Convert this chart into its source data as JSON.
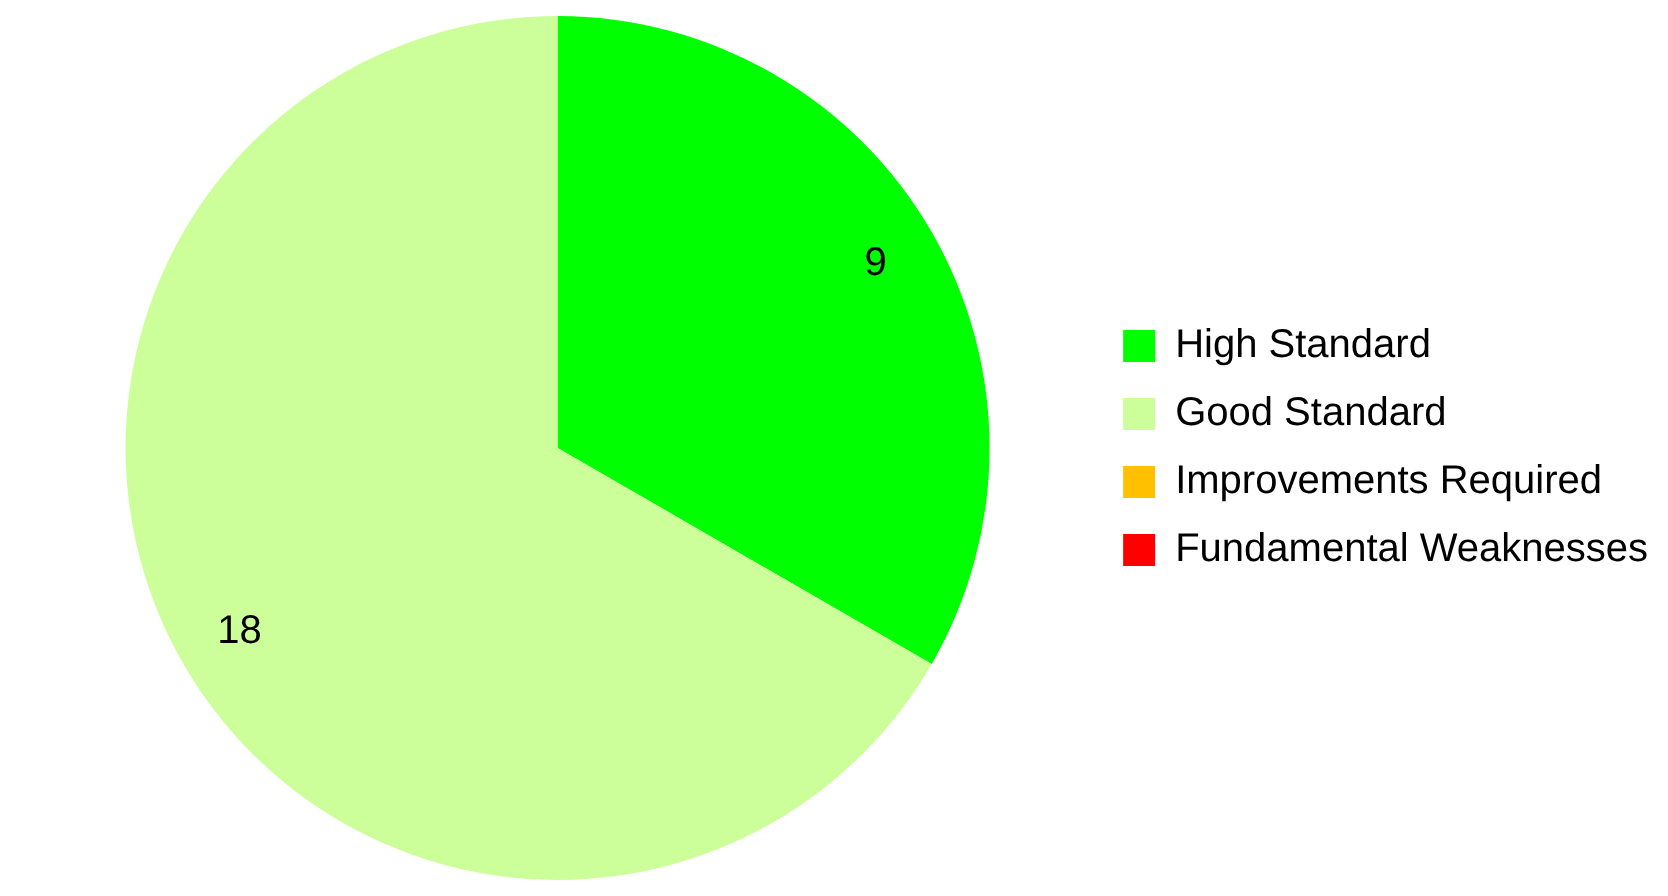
{
  "chart_data": {
    "type": "pie",
    "categories": [
      "High Standard",
      "Good Standard",
      "Improvements Required",
      "Fundamental Weaknesses"
    ],
    "values": [
      9,
      18,
      0,
      0
    ],
    "colors": [
      "#00ff00",
      "#ccff99",
      "#ffc000",
      "#ff0000"
    ],
    "value_labels": [
      "9",
      "18",
      null,
      null
    ],
    "legend": "right"
  }
}
